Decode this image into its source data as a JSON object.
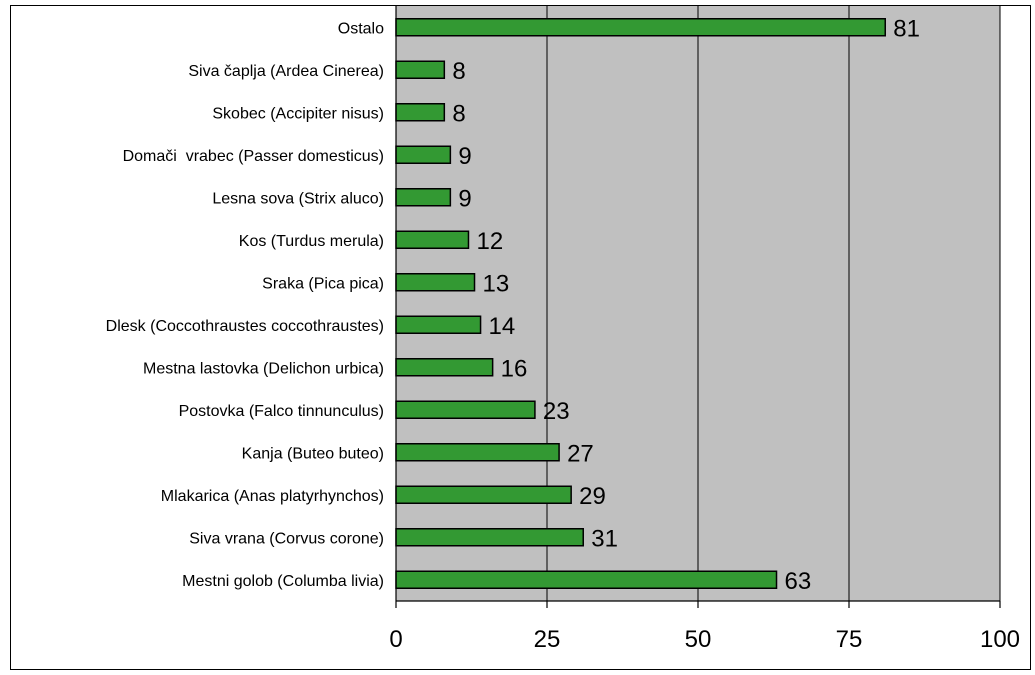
{
  "chart_data": {
    "type": "bar",
    "orientation": "horizontal",
    "categories": [
      "Ostalo",
      "Siva čaplja (Ardea Cinerea)",
      "Skobec (Accipiter nisus)",
      "Domači  vrabec (Passer domesticus)",
      "Lesna sova (Strix aluco)",
      "Kos (Turdus merula)",
      "Sraka (Pica pica)",
      "Dlesk (Coccothraustes coccothraustes)",
      "Mestna lastovka (Delichon urbica)",
      "Postovka (Falco tinnunculus)",
      "Kanja (Buteo buteo)",
      "Mlakarica (Anas platyrhynchos)",
      "Siva vrana (Corvus corone)",
      "Mestni golob (Columba livia)"
    ],
    "values": [
      81,
      8,
      8,
      9,
      9,
      12,
      13,
      14,
      16,
      23,
      27,
      29,
      31,
      63
    ],
    "value_labels": [
      "81",
      "8",
      "8",
      "9",
      "9",
      "12",
      "13",
      "14",
      "16",
      "23",
      "27",
      "29",
      "31",
      "63"
    ],
    "xlim": [
      0,
      100
    ],
    "xticks": [
      0,
      25,
      50,
      75,
      100
    ],
    "xtick_labels": [
      "0",
      "25",
      "50",
      "75",
      "100"
    ],
    "title": "",
    "xlabel": "",
    "ylabel": "",
    "grid": "vertical",
    "legend": "none",
    "colors": {
      "bar_fill": "#339933",
      "bar_stroke": "#000000",
      "plot_background": "#c0c0c0",
      "gridline": "#000000"
    }
  }
}
